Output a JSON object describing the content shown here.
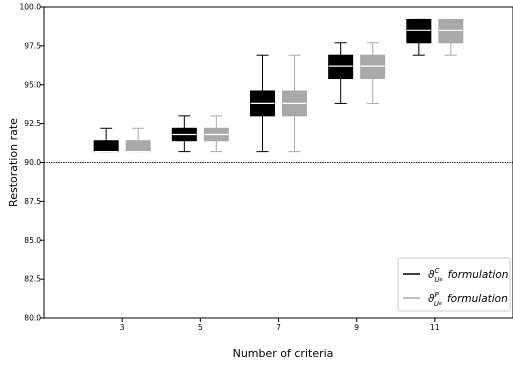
{
  "chart_data": {
    "type": "box",
    "xlabel": "Number of criteria",
    "ylabel": "Restoration rate",
    "ylim": [
      80.0,
      100.0
    ],
    "yticks": [
      80.0,
      82.5,
      85.0,
      87.5,
      90.0,
      92.5,
      95.0,
      97.5,
      100.0
    ],
    "xlim": [
      1,
      13
    ],
    "categories": [
      3,
      5,
      7,
      9,
      11
    ],
    "reference_line": {
      "y": 90.0,
      "style": "dotted"
    },
    "series": [
      {
        "name_symbol": "ϑ",
        "name_sup": "C",
        "name_sub": "U",
        "name_subsup": "e",
        "name_suffix": "formulation",
        "color": "#000000",
        "median_color": "#ffffff",
        "boxes": [
          {
            "x": 3,
            "whislo": 90.7,
            "q1": 90.7,
            "med": 90.7,
            "q3": 91.4,
            "whishi": 92.2
          },
          {
            "x": 5,
            "whislo": 90.7,
            "q1": 91.4,
            "med": 91.8,
            "q3": 92.2,
            "whishi": 93.0
          },
          {
            "x": 7,
            "whislo": 90.7,
            "q1": 93.0,
            "med": 93.8,
            "q3": 94.6,
            "whishi": 96.9
          },
          {
            "x": 9,
            "whislo": 93.8,
            "q1": 95.4,
            "med": 96.2,
            "q3": 96.9,
            "whishi": 97.7
          },
          {
            "x": 11,
            "whislo": 96.9,
            "q1": 97.7,
            "med": 98.5,
            "q3": 99.2,
            "whishi": 99.2
          }
        ]
      },
      {
        "name_symbol": "ϑ",
        "name_sup": "P",
        "name_sub": "U",
        "name_subsup": "e",
        "name_suffix": "formulation",
        "color": "#a9a9a9",
        "median_color": "#ffffff",
        "boxes": [
          {
            "x": 3,
            "whislo": 90.7,
            "q1": 90.7,
            "med": 90.7,
            "q3": 91.4,
            "whishi": 92.2
          },
          {
            "x": 5,
            "whislo": 90.7,
            "q1": 91.4,
            "med": 91.8,
            "q3": 92.2,
            "whishi": 93.0
          },
          {
            "x": 7,
            "whislo": 90.7,
            "q1": 93.0,
            "med": 93.8,
            "q3": 94.6,
            "whishi": 96.9
          },
          {
            "x": 9,
            "whislo": 93.8,
            "q1": 95.4,
            "med": 96.2,
            "q3": 96.9,
            "whishi": 97.7
          },
          {
            "x": 11,
            "whislo": 96.9,
            "q1": 97.7,
            "med": 98.5,
            "q3": 99.2,
            "whishi": 99.2
          }
        ]
      }
    ],
    "legend_position": "lower-right",
    "grid": false
  }
}
